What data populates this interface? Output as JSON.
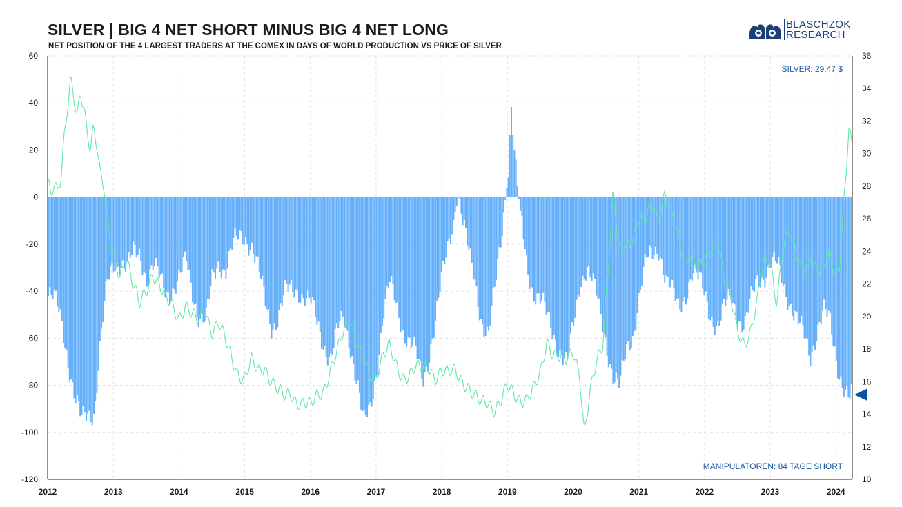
{
  "header": {
    "title": "SILVER | BIG 4 NET SHORT MINUS BIG 4 NET LONG",
    "subtitle": "NET POSITION OF THE 4 LARGEST TRADERS AT THE COMEX IN DAYS OF WORLD PRODUCTION VS PRICE OF SILVER"
  },
  "logo": {
    "line1": "BLASCHZOK",
    "line2": "RESEARCH",
    "color": "#1c3f7a"
  },
  "chart_data": {
    "type": "bar",
    "x_ticks": [
      "2012",
      "2013",
      "2014",
      "2015",
      "2016",
      "2017",
      "2018",
      "2019",
      "2020",
      "2021",
      "2022",
      "2023",
      "2024"
    ],
    "y_left": {
      "ticks": [
        60,
        40,
        20,
        0,
        -20,
        -40,
        -60,
        -80,
        -100,
        -120
      ],
      "range": [
        -120,
        60
      ]
    },
    "y_right": {
      "ticks": [
        36,
        34,
        32,
        30,
        28,
        26,
        24,
        22,
        20,
        18,
        16,
        14,
        12,
        10
      ],
      "range": [
        10,
        36
      ]
    },
    "grid": true,
    "colors": {
      "bars": "#66b0fb",
      "price_line": "#5fe8a6",
      "marker": "#0e4fa8",
      "annotation": "#1c5aa6"
    },
    "annotations": {
      "silver_price": "SILVER: 29,47 $",
      "net_position": "MANIPULATOREN: 84 TAGE SHORT"
    },
    "current_net_position": -84,
    "series": [
      {
        "name": "Big 4 net position",
        "type": "bar",
        "axis": "left",
        "points": [
          [
            2012.0,
            -42
          ],
          [
            2012.1,
            -45
          ],
          [
            2012.2,
            -52
          ],
          [
            2012.3,
            -68
          ],
          [
            2012.4,
            -85
          ],
          [
            2012.5,
            -96
          ],
          [
            2012.6,
            -92
          ],
          [
            2012.7,
            -90
          ],
          [
            2012.75,
            -75
          ],
          [
            2012.8,
            -60
          ],
          [
            2012.9,
            -38
          ],
          [
            2013.0,
            -28
          ],
          [
            2013.1,
            -26
          ],
          [
            2013.2,
            -30
          ],
          [
            2013.3,
            -25
          ],
          [
            2013.4,
            -24
          ],
          [
            2013.5,
            -33
          ],
          [
            2013.6,
            -30
          ],
          [
            2013.7,
            -36
          ],
          [
            2013.8,
            -40
          ],
          [
            2013.9,
            -38
          ],
          [
            2014.0,
            -35
          ],
          [
            2014.1,
            -28
          ],
          [
            2014.2,
            -40
          ],
          [
            2014.3,
            -50
          ],
          [
            2014.4,
            -53
          ],
          [
            2014.5,
            -36
          ],
          [
            2014.6,
            -27
          ],
          [
            2014.7,
            -30
          ],
          [
            2014.8,
            -22
          ],
          [
            2014.9,
            -18
          ],
          [
            2015.0,
            -16
          ],
          [
            2015.1,
            -20
          ],
          [
            2015.2,
            -32
          ],
          [
            2015.3,
            -45
          ],
          [
            2015.4,
            -54
          ],
          [
            2015.5,
            -50
          ],
          [
            2015.6,
            -42
          ],
          [
            2015.7,
            -40
          ],
          [
            2015.8,
            -38
          ],
          [
            2015.9,
            -42
          ],
          [
            2016.0,
            -46
          ],
          [
            2016.1,
            -55
          ],
          [
            2016.2,
            -62
          ],
          [
            2016.3,
            -68
          ],
          [
            2016.4,
            -58
          ],
          [
            2016.5,
            -52
          ],
          [
            2016.6,
            -62
          ],
          [
            2016.7,
            -78
          ],
          [
            2016.8,
            -98
          ],
          [
            2016.9,
            -90
          ],
          [
            2017.0,
            -72
          ],
          [
            2017.1,
            -50
          ],
          [
            2017.2,
            -38
          ],
          [
            2017.3,
            -45
          ],
          [
            2017.4,
            -55
          ],
          [
            2017.5,
            -62
          ],
          [
            2017.6,
            -68
          ],
          [
            2017.7,
            -78
          ],
          [
            2017.8,
            -65
          ],
          [
            2017.9,
            -52
          ],
          [
            2018.0,
            -35
          ],
          [
            2018.1,
            -18
          ],
          [
            2018.2,
            -5
          ],
          [
            2018.25,
            2
          ],
          [
            2018.3,
            -10
          ],
          [
            2018.4,
            -25
          ],
          [
            2018.5,
            -35
          ],
          [
            2018.6,
            -52
          ],
          [
            2018.7,
            -60
          ],
          [
            2018.8,
            -40
          ],
          [
            2018.9,
            -15
          ],
          [
            2019.0,
            10
          ],
          [
            2019.05,
            40
          ],
          [
            2019.1,
            15
          ],
          [
            2019.2,
            -10
          ],
          [
            2019.3,
            -30
          ],
          [
            2019.4,
            -40
          ],
          [
            2019.5,
            -45
          ],
          [
            2019.6,
            -52
          ],
          [
            2019.7,
            -58
          ],
          [
            2019.8,
            -65
          ],
          [
            2019.9,
            -72
          ],
          [
            2020.0,
            -55
          ],
          [
            2020.1,
            -35
          ],
          [
            2020.2,
            -28
          ],
          [
            2020.3,
            -38
          ],
          [
            2020.4,
            -50
          ],
          [
            2020.5,
            -62
          ],
          [
            2020.6,
            -75
          ],
          [
            2020.7,
            -82
          ],
          [
            2020.8,
            -66
          ],
          [
            2020.9,
            -58
          ],
          [
            2021.0,
            -40
          ],
          [
            2021.1,
            -28
          ],
          [
            2021.2,
            -25
          ],
          [
            2021.3,
            -20
          ],
          [
            2021.4,
            -34
          ],
          [
            2021.5,
            -42
          ],
          [
            2021.6,
            -48
          ],
          [
            2021.7,
            -40
          ],
          [
            2021.8,
            -32
          ],
          [
            2021.9,
            -36
          ],
          [
            2022.0,
            -42
          ],
          [
            2022.1,
            -50
          ],
          [
            2022.2,
            -55
          ],
          [
            2022.3,
            -48
          ],
          [
            2022.4,
            -42
          ],
          [
            2022.5,
            -50
          ],
          [
            2022.6,
            -55
          ],
          [
            2022.7,
            -45
          ],
          [
            2022.8,
            -35
          ],
          [
            2022.9,
            -32
          ],
          [
            2023.0,
            -28
          ],
          [
            2023.1,
            -30
          ],
          [
            2023.2,
            -38
          ],
          [
            2023.3,
            -44
          ],
          [
            2023.4,
            -52
          ],
          [
            2023.5,
            -60
          ],
          [
            2023.6,
            -68
          ],
          [
            2023.7,
            -55
          ],
          [
            2023.8,
            -48
          ],
          [
            2023.9,
            -55
          ],
          [
            2024.0,
            -70
          ],
          [
            2024.1,
            -78
          ],
          [
            2024.2,
            -86
          ],
          [
            2024.25,
            -84
          ]
        ]
      },
      {
        "name": "Silver price",
        "type": "line",
        "axis": "right",
        "points": [
          [
            2012.0,
            28.5
          ],
          [
            2012.05,
            27.2
          ],
          [
            2012.1,
            28.0
          ],
          [
            2012.15,
            27.4
          ],
          [
            2012.2,
            28.4
          ],
          [
            2012.25,
            31.0
          ],
          [
            2012.3,
            33.0
          ],
          [
            2012.35,
            34.8
          ],
          [
            2012.4,
            33.6
          ],
          [
            2012.45,
            32.2
          ],
          [
            2012.5,
            33.5
          ],
          [
            2012.55,
            32.6
          ],
          [
            2012.6,
            31.2
          ],
          [
            2012.65,
            30.3
          ],
          [
            2012.7,
            31.8
          ],
          [
            2012.75,
            30.8
          ],
          [
            2012.8,
            29.0
          ],
          [
            2012.85,
            28.2
          ],
          [
            2012.9,
            26.5
          ],
          [
            2012.95,
            24.5
          ],
          [
            2013.0,
            23.5
          ],
          [
            2013.1,
            22.5
          ],
          [
            2013.2,
            23.8
          ],
          [
            2013.3,
            22.0
          ],
          [
            2013.4,
            20.6
          ],
          [
            2013.5,
            21.5
          ],
          [
            2013.6,
            22.8
          ],
          [
            2013.7,
            22.0
          ],
          [
            2013.8,
            21.0
          ],
          [
            2013.9,
            20.5
          ],
          [
            2014.0,
            20.0
          ],
          [
            2014.1,
            20.8
          ],
          [
            2014.2,
            20.0
          ],
          [
            2014.3,
            19.6
          ],
          [
            2014.4,
            20.4
          ],
          [
            2014.5,
            19.2
          ],
          [
            2014.6,
            19.6
          ],
          [
            2014.7,
            18.5
          ],
          [
            2014.8,
            17.5
          ],
          [
            2014.9,
            16.6
          ],
          [
            2015.0,
            16.2
          ],
          [
            2015.1,
            17.2
          ],
          [
            2015.2,
            16.6
          ],
          [
            2015.3,
            17.0
          ],
          [
            2015.4,
            16.2
          ],
          [
            2015.5,
            15.4
          ],
          [
            2015.6,
            15.0
          ],
          [
            2015.7,
            15.4
          ],
          [
            2015.8,
            14.8
          ],
          [
            2015.9,
            14.6
          ],
          [
            2016.0,
            14.4
          ],
          [
            2016.1,
            15.2
          ],
          [
            2016.2,
            15.6
          ],
          [
            2016.3,
            16.6
          ],
          [
            2016.4,
            17.6
          ],
          [
            2016.5,
            19.0
          ],
          [
            2016.6,
            20.0
          ],
          [
            2016.7,
            18.6
          ],
          [
            2016.8,
            17.4
          ],
          [
            2016.9,
            16.2
          ],
          [
            2017.0,
            16.4
          ],
          [
            2017.1,
            17.8
          ],
          [
            2017.2,
            18.2
          ],
          [
            2017.3,
            16.8
          ],
          [
            2017.4,
            16.2
          ],
          [
            2017.5,
            16.6
          ],
          [
            2017.6,
            17.0
          ],
          [
            2017.7,
            16.6
          ],
          [
            2017.8,
            16.8
          ],
          [
            2017.9,
            16.4
          ],
          [
            2018.0,
            16.8
          ],
          [
            2018.1,
            16.4
          ],
          [
            2018.2,
            16.6
          ],
          [
            2018.3,
            16.2
          ],
          [
            2018.4,
            15.8
          ],
          [
            2018.5,
            15.0
          ],
          [
            2018.6,
            14.6
          ],
          [
            2018.7,
            14.8
          ],
          [
            2018.8,
            14.4
          ],
          [
            2018.9,
            14.8
          ],
          [
            2019.0,
            15.6
          ],
          [
            2019.1,
            15.2
          ],
          [
            2019.2,
            15.0
          ],
          [
            2019.3,
            15.0
          ],
          [
            2019.4,
            15.4
          ],
          [
            2019.5,
            16.4
          ],
          [
            2019.6,
            18.6
          ],
          [
            2019.7,
            17.8
          ],
          [
            2019.8,
            17.4
          ],
          [
            2019.9,
            17.2
          ],
          [
            2020.0,
            18.0
          ],
          [
            2020.1,
            16.6
          ],
          [
            2020.17,
            12.8
          ],
          [
            2020.25,
            15.0
          ],
          [
            2020.35,
            17.0
          ],
          [
            2020.45,
            18.4
          ],
          [
            2020.55,
            24.0
          ],
          [
            2020.6,
            27.5
          ],
          [
            2020.7,
            24.0
          ],
          [
            2020.8,
            24.2
          ],
          [
            2020.9,
            24.8
          ],
          [
            2021.0,
            26.2
          ],
          [
            2021.1,
            25.8
          ],
          [
            2021.2,
            26.8
          ],
          [
            2021.3,
            26.0
          ],
          [
            2021.4,
            27.8
          ],
          [
            2021.5,
            26.2
          ],
          [
            2021.6,
            24.8
          ],
          [
            2021.7,
            23.2
          ],
          [
            2021.8,
            24.0
          ],
          [
            2021.9,
            23.0
          ],
          [
            2022.0,
            23.2
          ],
          [
            2022.1,
            24.0
          ],
          [
            2022.2,
            25.0
          ],
          [
            2022.3,
            22.4
          ],
          [
            2022.4,
            21.0
          ],
          [
            2022.5,
            19.0
          ],
          [
            2022.6,
            18.4
          ],
          [
            2022.7,
            19.2
          ],
          [
            2022.8,
            20.8
          ],
          [
            2022.9,
            23.2
          ],
          [
            2023.0,
            23.4
          ],
          [
            2023.1,
            21.0
          ],
          [
            2023.2,
            24.4
          ],
          [
            2023.3,
            25.0
          ],
          [
            2023.4,
            23.8
          ],
          [
            2023.5,
            23.0
          ],
          [
            2023.6,
            23.8
          ],
          [
            2023.7,
            22.6
          ],
          [
            2023.8,
            22.8
          ],
          [
            2023.9,
            24.0
          ],
          [
            2024.0,
            22.8
          ],
          [
            2024.05,
            22.6
          ],
          [
            2024.1,
            25.8
          ],
          [
            2024.15,
            28.0
          ],
          [
            2024.2,
            31.8
          ],
          [
            2024.25,
            30.0
          ],
          [
            2024.3,
            29.0
          ],
          [
            2024.35,
            31.2
          ],
          [
            2024.4,
            29.8
          ],
          [
            2024.45,
            27.4
          ],
          [
            2024.5,
            29.5
          ]
        ]
      }
    ]
  }
}
